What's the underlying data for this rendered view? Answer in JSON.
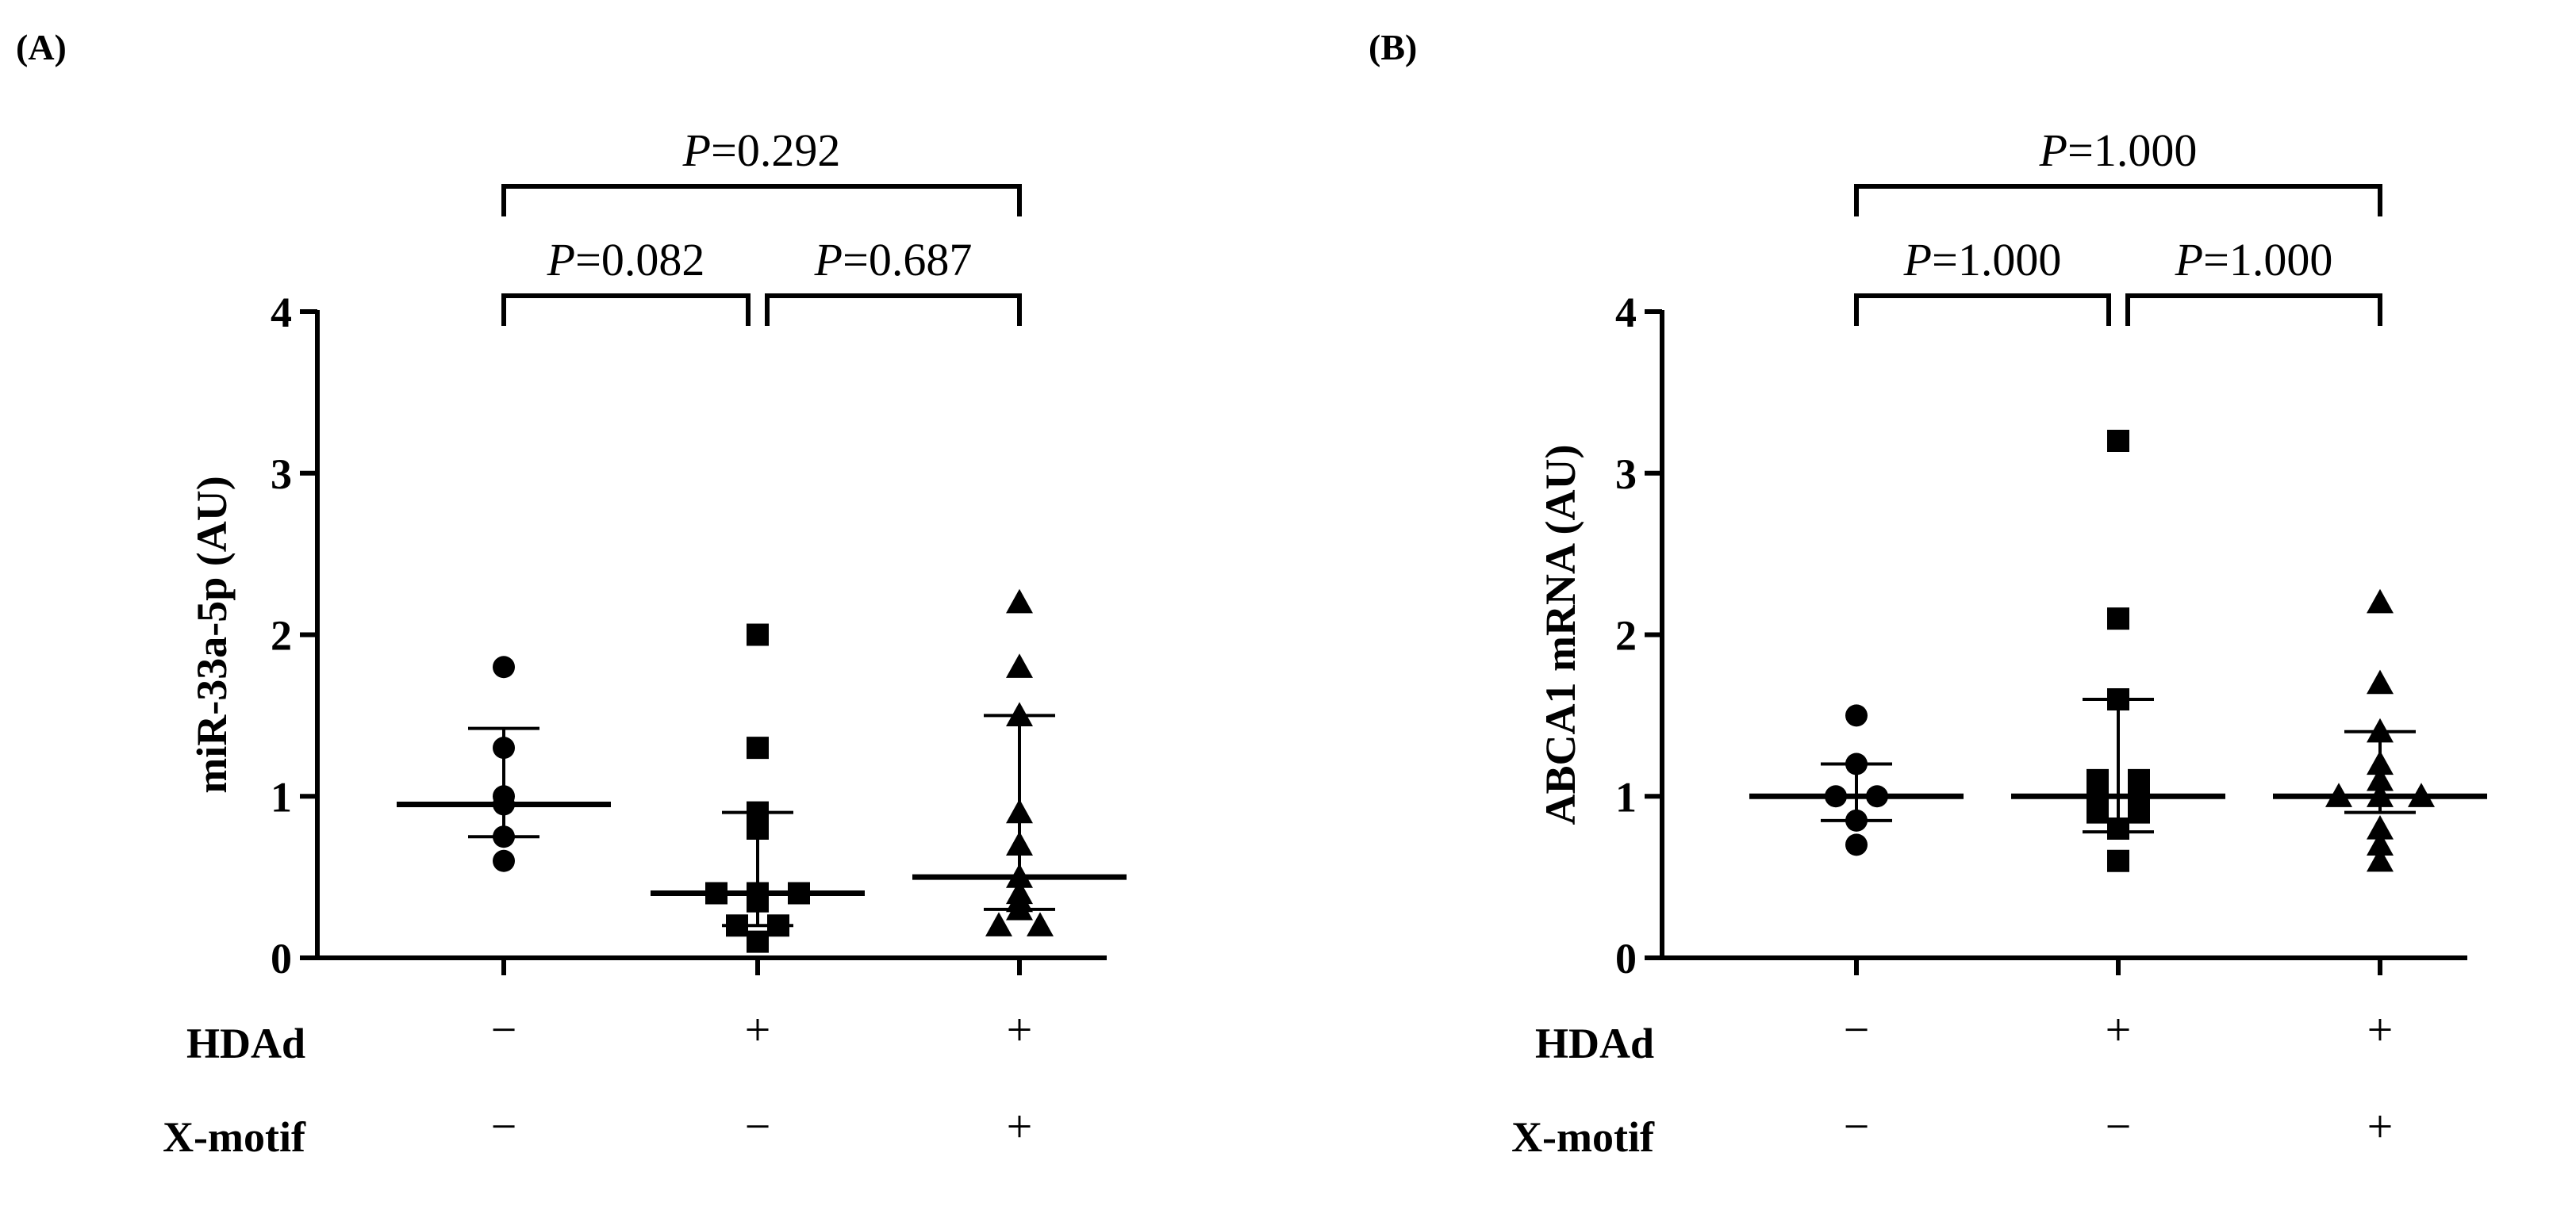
{
  "chart_data": [
    {
      "type": "scatter",
      "panel": "(A)",
      "ylabel": "miR-33a-5p (AU)",
      "ylim": [
        0,
        4
      ],
      "yticks": [
        "0",
        "1",
        "2",
        "3",
        "4"
      ],
      "groups": [
        {
          "marker": "circle",
          "hdad": "−",
          "xmotif": "−",
          "center": 0.95,
          "err_low": 0.75,
          "err_high": 1.42,
          "points": [
            1.8,
            1.3,
            1.0,
            0.95,
            0.75,
            0.6
          ]
        },
        {
          "marker": "square",
          "hdad": "+",
          "xmotif": "−",
          "center": 0.4,
          "err_low": 0.2,
          "err_high": 0.9,
          "points": [
            2.0,
            1.3,
            0.9,
            0.8,
            0.4,
            0.4,
            0.4,
            0.35,
            0.2,
            0.2,
            0.1
          ]
        },
        {
          "marker": "triangle",
          "hdad": "+",
          "xmotif": "+",
          "center": 0.5,
          "err_low": 0.3,
          "err_high": 1.5,
          "points": [
            2.2,
            1.8,
            1.5,
            0.9,
            0.7,
            0.5,
            0.4,
            0.35,
            0.3,
            0.2,
            0.2
          ]
        }
      ],
      "comparisons": [
        {
          "from": 0,
          "to": 1,
          "label": "=0.082",
          "level": 1
        },
        {
          "from": 1,
          "to": 2,
          "label": "=0.687",
          "level": 1
        },
        {
          "from": 0,
          "to": 2,
          "label": "=0.292",
          "level": 2
        }
      ]
    },
    {
      "type": "scatter",
      "panel": "(B)",
      "ylabel": "ABCA1 mRNA (AU)",
      "ylim": [
        0,
        4
      ],
      "yticks": [
        "0",
        "1",
        "2",
        "3",
        "4"
      ],
      "groups": [
        {
          "marker": "circle",
          "hdad": "−",
          "xmotif": "−",
          "center": 1.0,
          "err_low": 0.85,
          "err_high": 1.2,
          "points": [
            1.5,
            1.2,
            1.0,
            1.0,
            0.85,
            0.7
          ]
        },
        {
          "marker": "square",
          "hdad": "+",
          "xmotif": "−",
          "center": 1.0,
          "err_low": 0.78,
          "err_high": 1.6,
          "points": [
            3.2,
            2.1,
            1.6,
            1.1,
            1.1,
            1.0,
            1.0,
            0.9,
            0.9,
            0.8,
            0.6
          ]
        },
        {
          "marker": "triangle",
          "hdad": "+",
          "xmotif": "+",
          "center": 1.0,
          "err_low": 0.9,
          "err_high": 1.4,
          "points": [
            2.2,
            1.7,
            1.4,
            1.2,
            1.1,
            1.0,
            1.0,
            1.0,
            0.8,
            0.7,
            0.6
          ]
        }
      ],
      "comparisons": [
        {
          "from": 0,
          "to": 1,
          "label": "=1.000",
          "level": 1
        },
        {
          "from": 1,
          "to": 2,
          "label": "=1.000",
          "level": 1
        },
        {
          "from": 0,
          "to": 2,
          "label": "=1.000",
          "level": 2
        }
      ]
    }
  ],
  "labels": {
    "p_symbol": "P",
    "row_hdad": "HDAd",
    "row_xmotif": "X-motif"
  }
}
